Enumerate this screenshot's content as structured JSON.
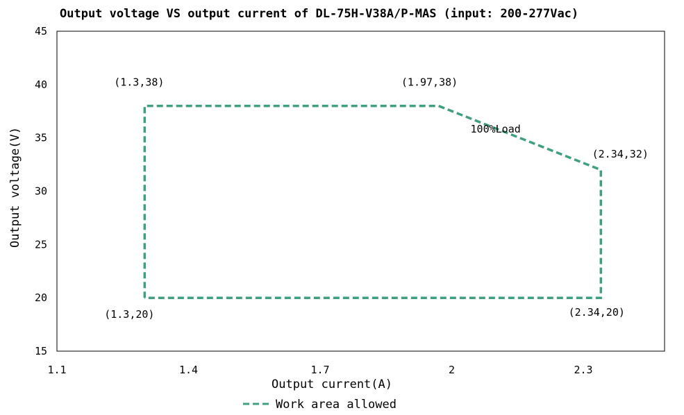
{
  "chart_data": {
    "type": "line",
    "title": "Output voltage VS output current of DL-75H-V38A/P-MAS (input: 200-277Vac)",
    "xlabel": "Output current(A)",
    "ylabel": "Output voltage(V)",
    "xlim": [
      1.1,
      2.4
    ],
    "ylim": [
      15,
      45
    ],
    "x_ticks": [
      1.1,
      1.4,
      1.7,
      2,
      2.3
    ],
    "x_tick_labels": [
      "1.1",
      "1.4",
      "1.7",
      "2",
      "2.3"
    ],
    "y_ticks": [
      15,
      20,
      25,
      30,
      35,
      40,
      45
    ],
    "y_tick_labels": [
      "15",
      "20",
      "25",
      "30",
      "35",
      "40",
      "45"
    ],
    "grid": false,
    "legend_position": "bottom-center",
    "series": [
      {
        "name": "Work area allowed",
        "color": "#3f9f7f",
        "style": "dashed",
        "points": [
          [
            1.3,
            20
          ],
          [
            1.3,
            38
          ],
          [
            1.97,
            38
          ],
          [
            2.34,
            32
          ],
          [
            2.34,
            20
          ],
          [
            1.3,
            20
          ]
        ]
      }
    ],
    "annotations": [
      {
        "text": "(1.3,38)",
        "x": 1.3,
        "y": 38
      },
      {
        "text": "(1.97,38)",
        "x": 1.97,
        "y": 38
      },
      {
        "text": "100%Load",
        "x": 2.1,
        "y": 35.5
      },
      {
        "text": "(2.34,32)",
        "x": 2.34,
        "y": 32
      },
      {
        "text": "(1.3,20)",
        "x": 1.3,
        "y": 20
      },
      {
        "text": "(2.34,20)",
        "x": 2.34,
        "y": 20
      }
    ]
  }
}
